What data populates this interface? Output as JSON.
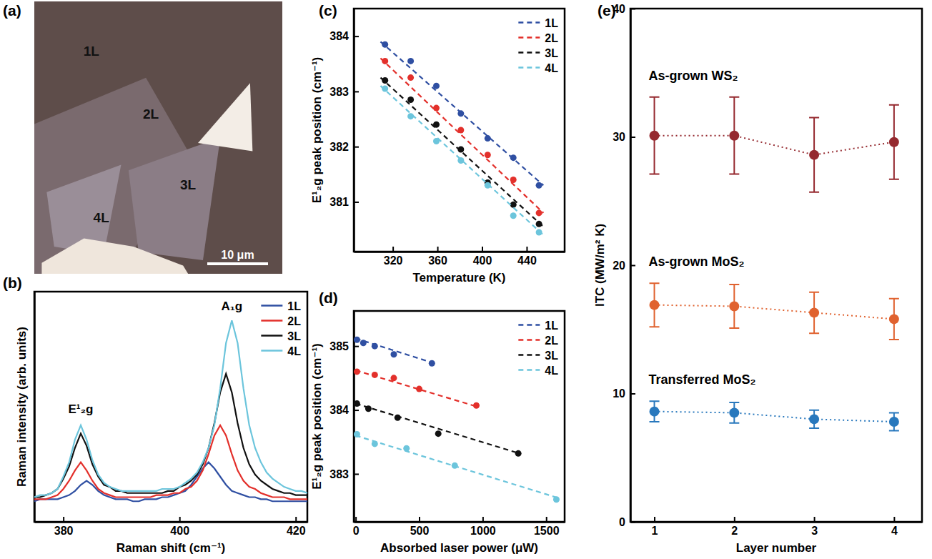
{
  "chart_data": [
    {
      "type": "image",
      "panel_label": "(a)",
      "labels": [
        "1L",
        "2L",
        "3L",
        "4L"
      ],
      "scale_bar": "10 μm"
    },
    {
      "type": "line",
      "panel_label": "(b)",
      "x_label": "Raman shift (cm⁻¹)",
      "y_label": "Raman intensity (arb. units)",
      "x": [
        375,
        376,
        377,
        378,
        379,
        380,
        381,
        382,
        383,
        384,
        385,
        386,
        387,
        388,
        389,
        390,
        391,
        392,
        393,
        394,
        395,
        396,
        397,
        398,
        399,
        400,
        401,
        402,
        403,
        404,
        405,
        406,
        407,
        408,
        409,
        410,
        411,
        412,
        413,
        414,
        415,
        416,
        417,
        418,
        419,
        420,
        421,
        422
      ],
      "xlim": [
        375,
        422
      ],
      "xticks": [
        380,
        400,
        420
      ],
      "ylim": [
        0,
        1.12
      ],
      "tick_labels": "x",
      "legend": "upper right",
      "annotations": [
        {
          "text": "E¹₂g",
          "x": 383,
          "y": 0.53
        },
        {
          "text": "A₁g",
          "x": 409,
          "y": 1.03
        }
      ],
      "series": [
        {
          "name": "1L",
          "color": "#2f4fa2",
          "line_style": "solid",
          "values": [
            0.1,
            0.11,
            0.11,
            0.11,
            0.11,
            0.12,
            0.13,
            0.15,
            0.18,
            0.2,
            0.18,
            0.15,
            0.13,
            0.12,
            0.11,
            0.11,
            0.11,
            0.1,
            0.1,
            0.11,
            0.11,
            0.11,
            0.12,
            0.12,
            0.13,
            0.14,
            0.15,
            0.18,
            0.22,
            0.26,
            0.29,
            0.26,
            0.22,
            0.18,
            0.15,
            0.14,
            0.13,
            0.12,
            0.12,
            0.11,
            0.11,
            0.1,
            0.1,
            0.1,
            0.1,
            0.1,
            0.1,
            0.1
          ]
        },
        {
          "name": "2L",
          "color": "#e3302b",
          "line_style": "solid",
          "values": [
            0.11,
            0.11,
            0.11,
            0.12,
            0.13,
            0.16,
            0.2,
            0.25,
            0.29,
            0.25,
            0.2,
            0.16,
            0.14,
            0.13,
            0.12,
            0.12,
            0.12,
            0.12,
            0.12,
            0.12,
            0.12,
            0.13,
            0.13,
            0.13,
            0.14,
            0.14,
            0.16,
            0.17,
            0.2,
            0.25,
            0.33,
            0.42,
            0.47,
            0.42,
            0.33,
            0.25,
            0.2,
            0.17,
            0.16,
            0.14,
            0.13,
            0.12,
            0.12,
            0.12,
            0.11,
            0.11,
            0.11,
            0.11
          ]
        },
        {
          "name": "3L",
          "color": "#111111",
          "line_style": "solid",
          "values": [
            0.12,
            0.12,
            0.13,
            0.14,
            0.16,
            0.21,
            0.27,
            0.36,
            0.43,
            0.37,
            0.28,
            0.22,
            0.18,
            0.17,
            0.15,
            0.15,
            0.14,
            0.14,
            0.14,
            0.14,
            0.14,
            0.14,
            0.14,
            0.15,
            0.15,
            0.17,
            0.18,
            0.2,
            0.23,
            0.28,
            0.36,
            0.48,
            0.63,
            0.72,
            0.63,
            0.48,
            0.36,
            0.28,
            0.23,
            0.2,
            0.18,
            0.16,
            0.15,
            0.14,
            0.14,
            0.13,
            0.13,
            0.13
          ]
        },
        {
          "name": "4L",
          "color": "#6cc5dc",
          "line_style": "solid",
          "values": [
            0.12,
            0.13,
            0.13,
            0.14,
            0.16,
            0.22,
            0.29,
            0.4,
            0.47,
            0.4,
            0.3,
            0.23,
            0.19,
            0.17,
            0.16,
            0.15,
            0.15,
            0.15,
            0.15,
            0.15,
            0.15,
            0.15,
            0.16,
            0.16,
            0.16,
            0.17,
            0.19,
            0.21,
            0.24,
            0.29,
            0.36,
            0.47,
            0.65,
            0.87,
            0.98,
            0.87,
            0.65,
            0.47,
            0.36,
            0.29,
            0.24,
            0.21,
            0.19,
            0.17,
            0.16,
            0.15,
            0.15,
            0.14
          ]
        }
      ]
    },
    {
      "type": "scatter",
      "panel_label": "(c)",
      "x_label": "Temperature (K)",
      "y_label": "E¹₂g peak position (cm⁻¹)",
      "xlim": [
        285,
        474
      ],
      "xticks": [
        320,
        360,
        400,
        440
      ],
      "ylim": [
        380.1,
        384.5
      ],
      "yticks": [
        381,
        382,
        383,
        384
      ],
      "legend": "upper right",
      "series": [
        {
          "name": "1L",
          "color": "#2f4fa2",
          "marker": "circle",
          "line_style": "dashed",
          "x": [
            313,
            336,
            359,
            381,
            405,
            428,
            451
          ],
          "values": [
            383.85,
            383.55,
            383.1,
            382.6,
            382.15,
            381.8,
            381.3
          ],
          "fit_x": [
            309,
            455
          ],
          "fit_values": [
            383.9,
            381.3
          ]
        },
        {
          "name": "2L",
          "color": "#e3302b",
          "marker": "circle",
          "line_style": "dashed",
          "x": [
            313,
            336,
            359,
            381,
            405,
            428,
            451
          ],
          "values": [
            383.55,
            383.25,
            382.7,
            382.3,
            381.85,
            381.4,
            380.8
          ],
          "fit_x": [
            309,
            455
          ],
          "fit_values": [
            383.6,
            380.8
          ]
        },
        {
          "name": "3L",
          "color": "#111111",
          "marker": "circle",
          "line_style": "dashed",
          "x": [
            313,
            336,
            359,
            381,
            405,
            428,
            451
          ],
          "values": [
            383.2,
            382.85,
            382.4,
            381.95,
            381.35,
            380.95,
            380.6
          ],
          "fit_x": [
            309,
            455
          ],
          "fit_values": [
            383.25,
            380.55
          ]
        },
        {
          "name": "4L",
          "color": "#6cc5dc",
          "marker": "circle",
          "line_style": "dashed",
          "x": [
            313,
            336,
            359,
            381,
            405,
            428,
            451
          ],
          "values": [
            383.05,
            382.55,
            382.1,
            381.75,
            381.3,
            380.75,
            380.45
          ],
          "fit_x": [
            309,
            455
          ],
          "fit_values": [
            383.1,
            380.4
          ]
        }
      ]
    },
    {
      "type": "scatter",
      "panel_label": "(d)",
      "x_label": "Absorbed laser power (μW)",
      "y_label": "E¹₂g peak position (cm⁻¹)",
      "xlim": [
        -15,
        1645
      ],
      "xticks": [
        0,
        500,
        1000,
        1500
      ],
      "ylim": [
        382.25,
        385.55
      ],
      "yticks": [
        383,
        384,
        385
      ],
      "legend": "upper right",
      "series": [
        {
          "name": "1L",
          "color": "#2f4fa2",
          "marker": "circle",
          "line_style": "dashed",
          "x": [
            10,
            60,
            150,
            300,
            600
          ],
          "values": [
            385.1,
            385.05,
            385.0,
            384.87,
            384.73
          ],
          "fit_x": [
            0,
            620
          ],
          "fit_values": [
            385.12,
            384.73
          ]
        },
        {
          "name": "2L",
          "color": "#e3302b",
          "marker": "circle",
          "line_style": "dashed",
          "x": [
            10,
            150,
            300,
            500,
            950
          ],
          "values": [
            384.6,
            384.55,
            384.5,
            384.33,
            384.07
          ],
          "fit_x": [
            0,
            960
          ],
          "fit_values": [
            384.62,
            384.05
          ]
        },
        {
          "name": "3L",
          "color": "#111111",
          "marker": "circle",
          "line_style": "dashed",
          "x": [
            10,
            100,
            330,
            650,
            1280
          ],
          "values": [
            384.1,
            384.02,
            383.88,
            383.63,
            383.32
          ],
          "fit_x": [
            0,
            1290
          ],
          "fit_values": [
            384.1,
            383.32
          ]
        },
        {
          "name": "4L",
          "color": "#6cc5dc",
          "marker": "circle",
          "line_style": "dashed",
          "x": [
            10,
            150,
            400,
            780,
            1580
          ],
          "values": [
            383.62,
            383.47,
            383.4,
            383.13,
            382.6
          ],
          "fit_x": [
            0,
            1600
          ],
          "fit_values": [
            383.6,
            382.62
          ]
        }
      ]
    },
    {
      "type": "line",
      "panel_label": "(e)",
      "x_label": "Layer number",
      "y_label": "ITC (MW/m² K)",
      "x": [
        1,
        2,
        3,
        4
      ],
      "xlim": [
        0.7,
        4.35
      ],
      "xticks": [
        1,
        2,
        3,
        4
      ],
      "ylim": [
        0,
        40
      ],
      "yticks": [
        0,
        10,
        20,
        30,
        40
      ],
      "marker": "circle",
      "line_style": "dotted",
      "series": [
        {
          "name": "As-grown WS₂",
          "color": "#95292f",
          "values": [
            30.1,
            30.1,
            28.6,
            29.6
          ],
          "error": [
            3.0,
            3.0,
            2.9,
            2.9
          ]
        },
        {
          "name": "As-grown MoS₂",
          "color": "#e0622f",
          "values": [
            16.9,
            16.8,
            16.3,
            15.8
          ],
          "error": [
            1.7,
            1.7,
            1.6,
            1.6
          ]
        },
        {
          "name": "Transferred MoS₂",
          "color": "#2878bd",
          "values": [
            8.6,
            8.5,
            8.0,
            7.8
          ],
          "error": [
            0.8,
            0.8,
            0.7,
            0.7
          ]
        }
      ]
    }
  ]
}
